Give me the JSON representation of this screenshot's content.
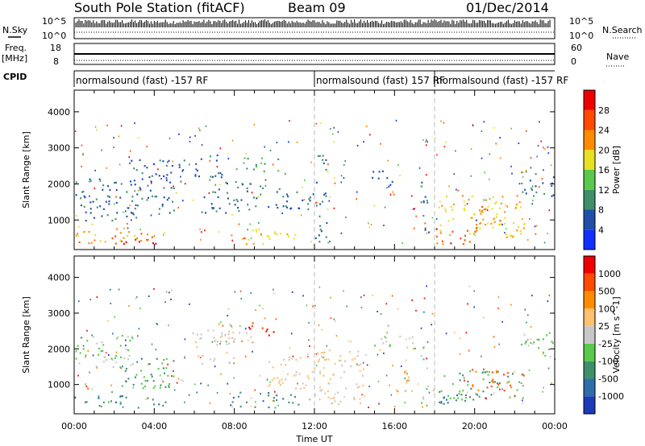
{
  "header": {
    "station": "South Pole Station (fitACF)",
    "beam": "Beam 09",
    "date": "01/Dec/2014"
  },
  "nsky_panel": {
    "label": "N.Sky",
    "tick_top": "10^5",
    "tick_bottom": "10^0",
    "right_label": "N.Search",
    "right_tick_top": "10^5",
    "right_tick_bottom": "10^0"
  },
  "freq_panel": {
    "label_line1": "Freq.",
    "label_line2": "[MHz]",
    "tick_top": "18",
    "tick_bottom": "8",
    "right_label": "Nave",
    "right_tick_top": "60",
    "right_tick_bottom": "0"
  },
  "cpid": {
    "label": "CPID",
    "segments": [
      {
        "text": "normalsound (fast) -157 RF",
        "start_hour": 0
      },
      {
        "text": "normalsound (fast) 157 RF",
        "start_hour": 12
      },
      {
        "text": "normalsound (fast) -157 RF",
        "start_hour": 18
      }
    ]
  },
  "x_axis": {
    "title": "Time UT",
    "ticks": [
      "00:00",
      "04:00",
      "08:00",
      "12:00",
      "16:00",
      "20:00",
      "00:00"
    ]
  },
  "chart_data": [
    {
      "type": "heatmap",
      "panel": "power",
      "ylabel": "Slant Range [km]",
      "xlim_hours": [
        0,
        24
      ],
      "ylim_km": [
        180,
        4600
      ],
      "yticks": [
        1000,
        2000,
        3000,
        4000
      ],
      "colorbar": {
        "label": "Power [dB]",
        "ticks": [
          "4",
          "8",
          "12",
          "16",
          "20",
          "24",
          "28"
        ],
        "colors": [
          "#1030ff",
          "#1f4fa8",
          "#3f8f6a",
          "#5ac84a",
          "#e8e020",
          "#ff8c00",
          "#ff4a00",
          "#ee0000"
        ],
        "range": [
          0,
          32
        ]
      },
      "echo_regions": [
        {
          "t": [
            0.0,
            4.6
          ],
          "r": [
            350,
            700
          ],
          "value": 22
        },
        {
          "t": [
            2.3,
            4.2
          ],
          "r": [
            350,
            650
          ],
          "value": 29
        },
        {
          "t": [
            0.0,
            3.5
          ],
          "r": [
            1000,
            2200
          ],
          "value": 7
        },
        {
          "t": [
            2.8,
            5.5
          ],
          "r": [
            1900,
            2700
          ],
          "value": 6
        },
        {
          "t": [
            3.6,
            5.2
          ],
          "r": [
            1200,
            2000
          ],
          "value": 9
        },
        {
          "t": [
            6.0,
            7.5
          ],
          "r": [
            2200,
            2900
          ],
          "value": 7
        },
        {
          "t": [
            6.3,
            9.4
          ],
          "r": [
            1200,
            2100
          ],
          "value": 9
        },
        {
          "t": [
            8.0,
            10.3
          ],
          "r": [
            2350,
            2750
          ],
          "value": 12
        },
        {
          "t": [
            7.8,
            11.2
          ],
          "r": [
            350,
            800
          ],
          "value": 19
        },
        {
          "t": [
            9.5,
            12.0
          ],
          "r": [
            1300,
            1900
          ],
          "value": 7
        },
        {
          "t": [
            12.0,
            12.6
          ],
          "r": [
            350,
            2900
          ],
          "value": 9
        },
        {
          "t": [
            14.8,
            16.2
          ],
          "r": [
            1950,
            2400
          ],
          "value": 6
        },
        {
          "t": [
            17.3,
            17.7
          ],
          "r": [
            350,
            2200
          ],
          "value": 8
        },
        {
          "t": [
            18.0,
            20.2
          ],
          "r": [
            350,
            800
          ],
          "value": 26
        },
        {
          "t": [
            18.2,
            22.5
          ],
          "r": [
            500,
            1700
          ],
          "value": 19
        },
        {
          "t": [
            19.9,
            21.3
          ],
          "r": [
            800,
            1400
          ],
          "value": 23
        },
        {
          "t": [
            22.3,
            24.0
          ],
          "r": [
            1650,
            2500
          ],
          "value": 7
        }
      ]
    },
    {
      "type": "heatmap",
      "panel": "velocity",
      "ylabel": "Slant Range [km]",
      "xlim_hours": [
        0,
        24
      ],
      "ylim_km": [
        180,
        4600
      ],
      "yticks": [
        1000,
        2000,
        3000,
        4000
      ],
      "colorbar": {
        "label": "Velocity [m s^-1]",
        "ticks": [
          "1000",
          "500",
          "100",
          "25",
          "-25",
          "-100",
          "-500",
          "-1000"
        ],
        "colors": [
          "#1a3ab8",
          "#2a6fa8",
          "#3f8f6a",
          "#58c94a",
          "#c8c8c8",
          "#ffc070",
          "#ff8c00",
          "#ff4a00",
          "#ee0000"
        ],
        "range": [
          -1200,
          1200
        ]
      },
      "echo_regions": [
        {
          "t": [
            0.0,
            4.6
          ],
          "r": [
            350,
            700
          ],
          "value": -600
        },
        {
          "t": [
            2.0,
            5.0
          ],
          "r": [
            900,
            1800
          ],
          "value": -400
        },
        {
          "t": [
            0.0,
            3.0
          ],
          "r": [
            1500,
            2400
          ],
          "value": -150
        },
        {
          "t": [
            5.8,
            8.0
          ],
          "r": [
            1600,
            2700
          ],
          "value": 30
        },
        {
          "t": [
            7.0,
            9.0
          ],
          "r": [
            2200,
            2650
          ],
          "value": 0
        },
        {
          "t": [
            8.7,
            10.4
          ],
          "r": [
            2400,
            2750
          ],
          "value": 1000
        },
        {
          "t": [
            7.6,
            11.2
          ],
          "r": [
            350,
            800
          ],
          "value": -600
        },
        {
          "t": [
            9.6,
            12.4
          ],
          "r": [
            900,
            1800
          ],
          "value": 150
        },
        {
          "t": [
            12.0,
            14.5
          ],
          "r": [
            400,
            2000
          ],
          "value": 200
        },
        {
          "t": [
            14.8,
            17.0
          ],
          "r": [
            1950,
            2400
          ],
          "value": 0
        },
        {
          "t": [
            16.0,
            17.0
          ],
          "r": [
            600,
            1400
          ],
          "value": 300
        },
        {
          "t": [
            17.3,
            17.7
          ],
          "r": [
            350,
            2200
          ],
          "value": -200
        },
        {
          "t": [
            18.0,
            20.3
          ],
          "r": [
            350,
            750
          ],
          "value": -600
        },
        {
          "t": [
            18.2,
            22.4
          ],
          "r": [
            600,
            1400
          ],
          "value": -400
        },
        {
          "t": [
            19.8,
            21.8
          ],
          "r": [
            800,
            1500
          ],
          "value": 700
        },
        {
          "t": [
            22.2,
            24.0
          ],
          "r": [
            1700,
            2500
          ],
          "value": -250
        }
      ]
    }
  ]
}
